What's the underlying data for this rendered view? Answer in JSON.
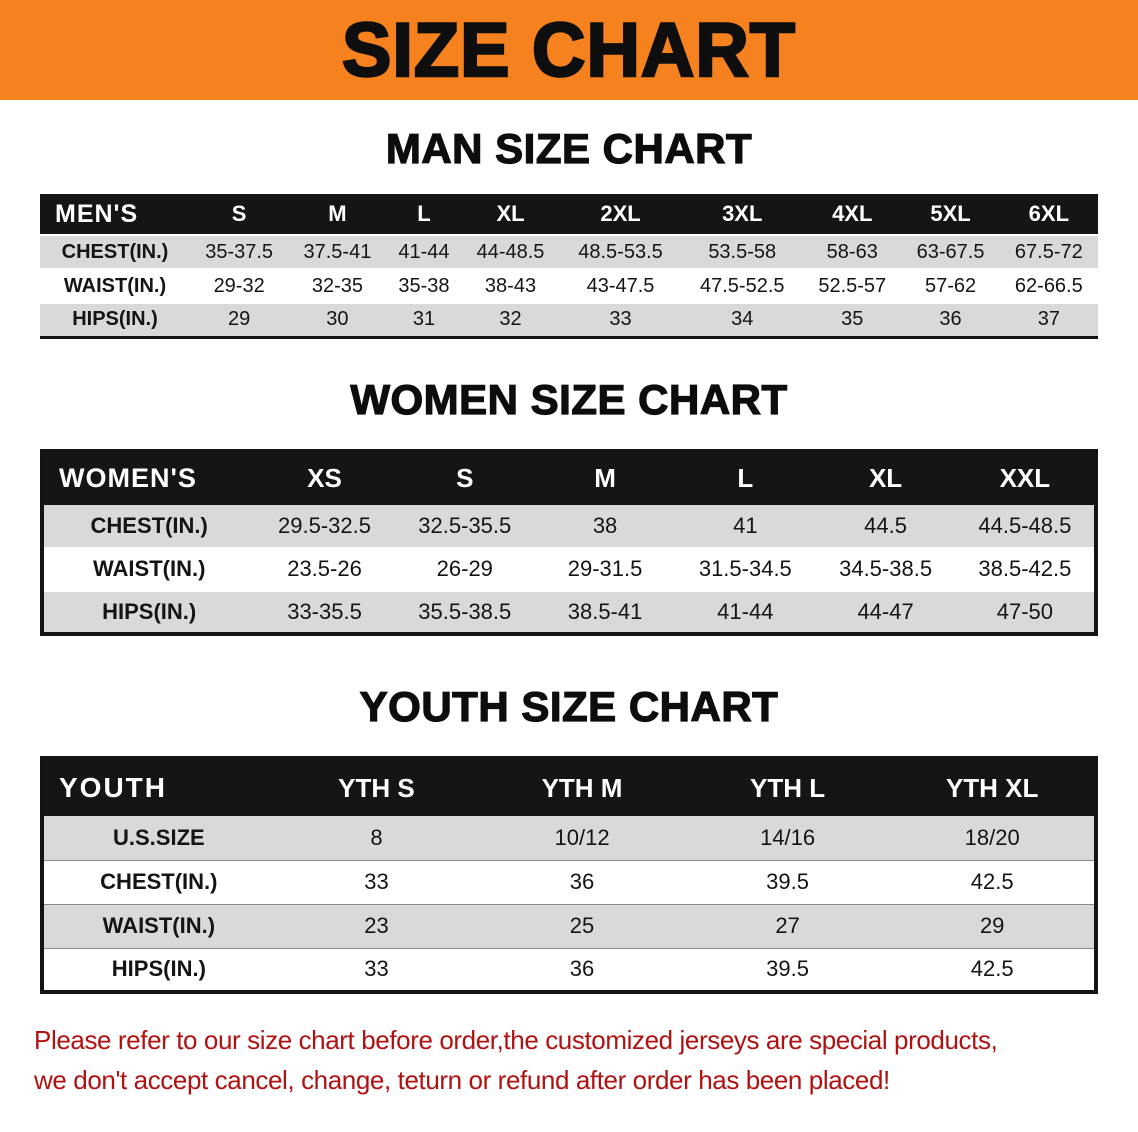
{
  "banner": {
    "title": "SIZE CHART"
  },
  "colors": {
    "banner_bg": "#F5821F",
    "table_header_bg": "#151515",
    "row_stripe": "#D9D9D9",
    "disclaimer_red": "#B01212"
  },
  "sections": [
    {
      "id": "men",
      "heading": "MAN SIZE CHART",
      "table": {
        "header": [
          "MEN'S",
          "S",
          "M",
          "L",
          "XL",
          "2XL",
          "3XL",
          "4XL",
          "5XL",
          "6XL"
        ],
        "rows": [
          [
            "CHEST(IN.)",
            "35-37.5",
            "37.5-41",
            "41-44",
            "44-48.5",
            "48.5-53.5",
            "53.5-58",
            "58-63",
            "63-67.5",
            "67.5-72"
          ],
          [
            "WAIST(IN.)",
            "29-32",
            "32-35",
            "35-38",
            "38-43",
            "43-47.5",
            "47.5-52.5",
            "52.5-57",
            "57-62",
            "62-66.5"
          ],
          [
            "HIPS(IN.)",
            "29",
            "30",
            "31",
            "32",
            "33",
            "34",
            "35",
            "36",
            "37"
          ]
        ]
      }
    },
    {
      "id": "women",
      "heading": "WOMEN SIZE CHART",
      "table": {
        "header": [
          "WOMEN'S",
          "XS",
          "S",
          "M",
          "L",
          "XL",
          "XXL"
        ],
        "rows": [
          [
            "CHEST(IN.)",
            "29.5-32.5",
            "32.5-35.5",
            "38",
            "41",
            "44.5",
            "44.5-48.5"
          ],
          [
            "WAIST(IN.)",
            "23.5-26",
            "26-29",
            "29-31.5",
            "31.5-34.5",
            "34.5-38.5",
            "38.5-42.5"
          ],
          [
            "HIPS(IN.)",
            "33-35.5",
            "35.5-38.5",
            "38.5-41",
            "41-44",
            "44-47",
            "47-50"
          ]
        ]
      }
    },
    {
      "id": "youth",
      "heading": "YOUTH SIZE CHART",
      "table": {
        "header": [
          "YOUTH",
          "YTH S",
          "YTH M",
          "YTH L",
          "YTH XL"
        ],
        "rows": [
          [
            "U.S.SIZE",
            "8",
            "10/12",
            "14/16",
            "18/20"
          ],
          [
            "CHEST(IN.)",
            "33",
            "36",
            "39.5",
            "42.5"
          ],
          [
            "WAIST(IN.)",
            "23",
            "25",
            "27",
            "29"
          ],
          [
            "HIPS(IN.)",
            "33",
            "36",
            "39.5",
            "42.5"
          ]
        ]
      }
    }
  ],
  "disclaimer": {
    "line1": "Please refer to our size chart before order,the customized jerseys are special products,",
    "line2": "we don't accept cancel, change, teturn or refund after order has been placed!"
  }
}
